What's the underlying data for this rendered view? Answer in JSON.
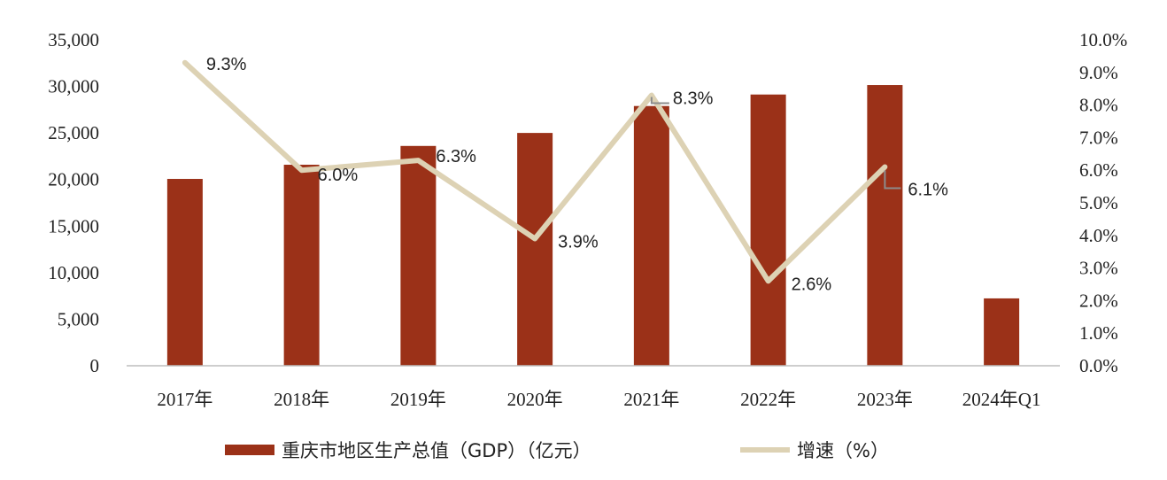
{
  "chart_data": {
    "type": "bar",
    "categories": [
      "2017年",
      "2018年",
      "2019年",
      "2020年",
      "2021年",
      "2022年",
      "2023年",
      "2024年Q1"
    ],
    "series": [
      {
        "name": "重庆市地区生产总值（GDP）（亿元）",
        "type": "bar",
        "axis": "left",
        "values": [
          20066,
          21589,
          23606,
          25003,
          27894,
          29129,
          30146,
          7235
        ]
      },
      {
        "name": "增速（%）",
        "type": "line",
        "axis": "right",
        "values": [
          9.3,
          6.0,
          6.3,
          3.9,
          8.3,
          2.6,
          6.1,
          null
        ],
        "labels": [
          "9.3%",
          "6.0%",
          "6.3%",
          "3.9%",
          "8.3%",
          "2.6%",
          "6.1%",
          ""
        ]
      }
    ],
    "y_left": {
      "min": 0,
      "max": 35000,
      "ticks": [
        "0",
        "5,000",
        "10,000",
        "15,000",
        "20,000",
        "25,000",
        "30,000",
        "35,000"
      ]
    },
    "y_right": {
      "min": 0,
      "max": 10,
      "ticks": [
        "0.0%",
        "1.0%",
        "2.0%",
        "3.0%",
        "4.0%",
        "5.0%",
        "6.0%",
        "7.0%",
        "8.0%",
        "9.0%",
        "10.0%"
      ]
    },
    "grid": false,
    "legend_position": "bottom",
    "colors": {
      "bar": "#9b3118",
      "line": "#ddd2b4",
      "leader": "#8c8c8c"
    }
  },
  "legend": {
    "bar_label": "重庆市地区生产总值（GDP）（亿元）",
    "line_label": "增速（%）"
  }
}
